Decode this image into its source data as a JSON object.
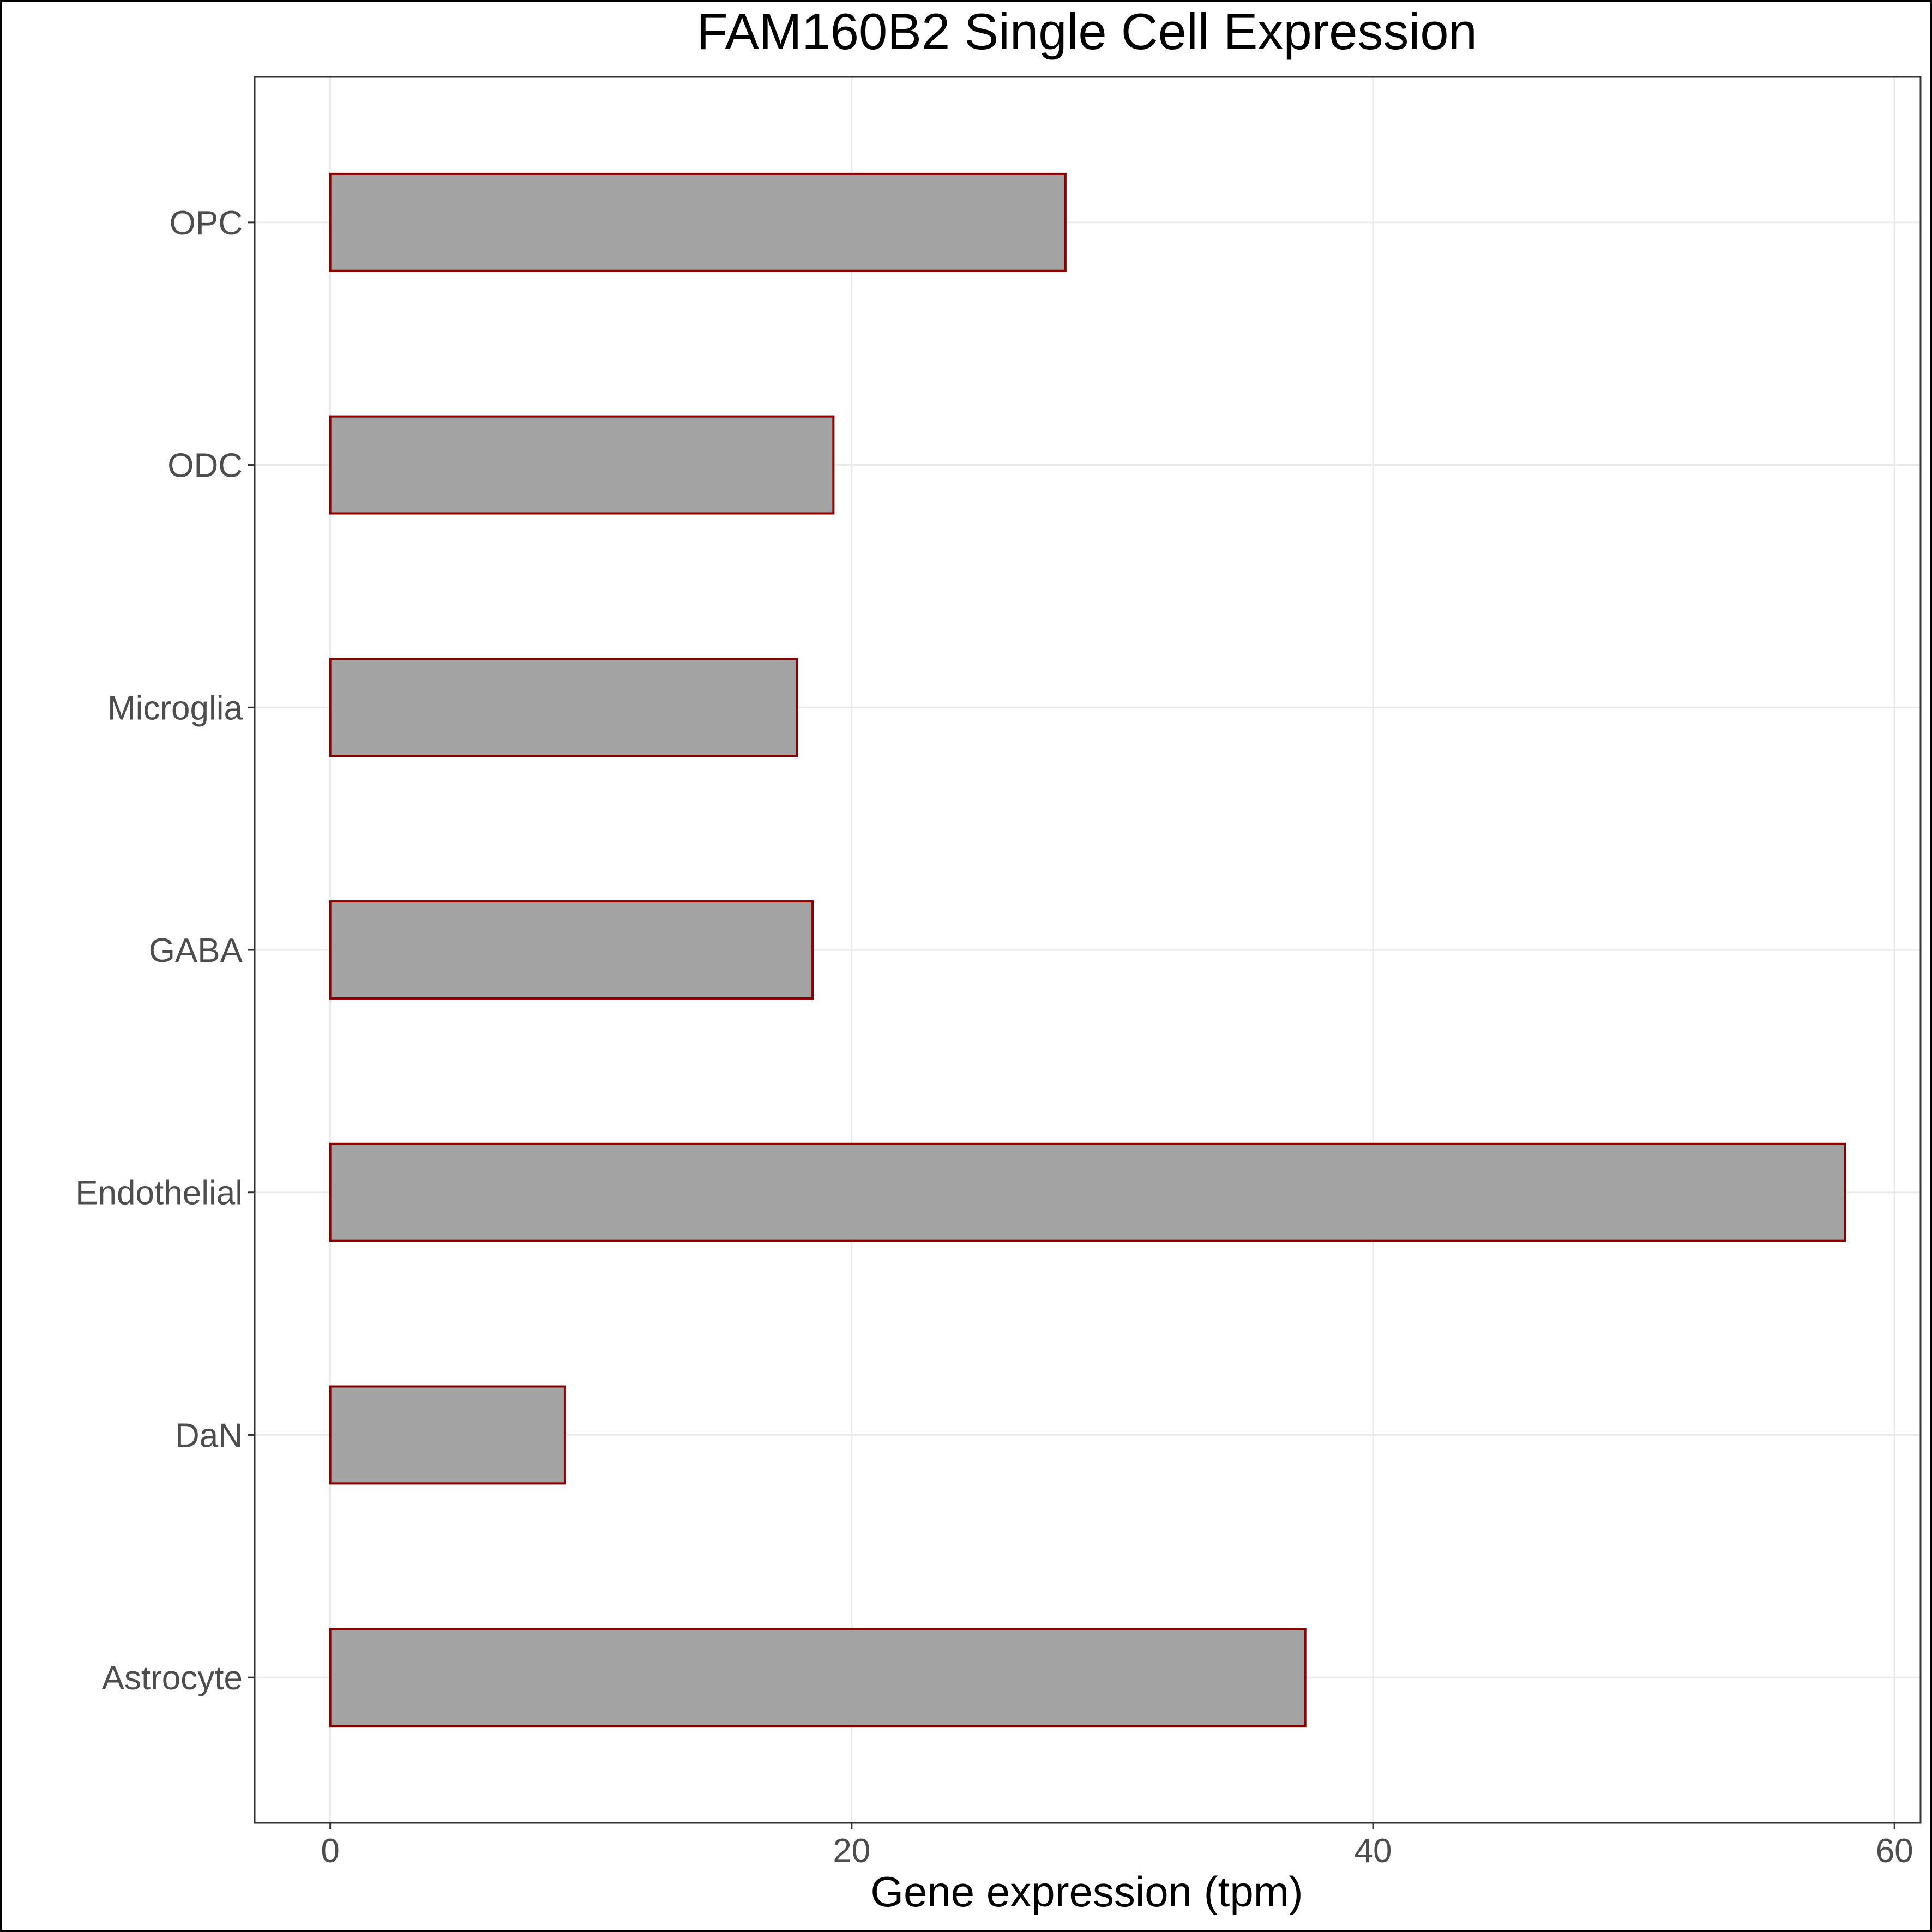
{
  "chart_data": {
    "type": "bar",
    "orientation": "horizontal",
    "title": "FAM160B2 Single Cell Expression",
    "xlabel": "Gene expression (tpm)",
    "ylabel": "",
    "categories": [
      "Astrocyte",
      "DaN",
      "Endothelial",
      "GABA",
      "Microglia",
      "ODC",
      "OPC"
    ],
    "values": [
      37.4,
      9.0,
      58.1,
      18.5,
      17.9,
      19.3,
      28.2
    ],
    "xlim": [
      -2.9,
      61.0
    ],
    "xticks": [
      0,
      20,
      40,
      60
    ],
    "grid": true,
    "legend": "none",
    "colors": {
      "bar_fill": "#a3a3a3",
      "bar_border": "#8b0000",
      "grid": "#ebebeb",
      "panel_border": "#333333",
      "background": "#ffffff"
    }
  }
}
